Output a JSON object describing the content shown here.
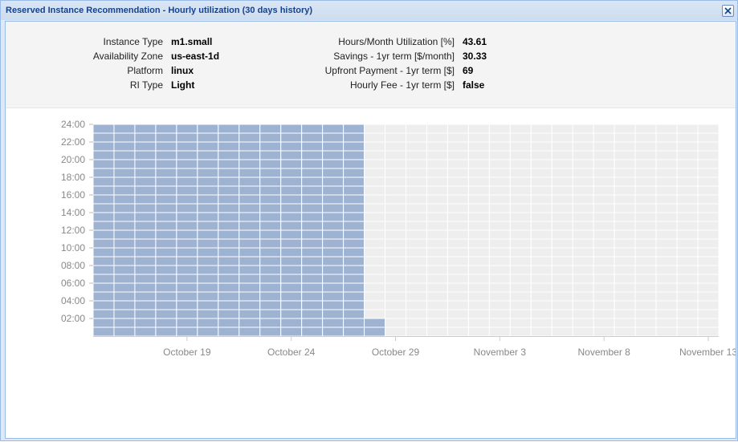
{
  "window": {
    "title": "Reserved Instance Recommendation - Hourly utilization (30 days history)"
  },
  "info": {
    "left": [
      {
        "label": "Instance Type",
        "value": "m1.small"
      },
      {
        "label": "Availability Zone",
        "value": "us-east-1d"
      },
      {
        "label": "Platform",
        "value": "linux"
      },
      {
        "label": "RI Type",
        "value": "Light"
      }
    ],
    "right": [
      {
        "label": "Hours/Month Utilization [%]",
        "value": "43.61"
      },
      {
        "label": "Savings - 1yr term [$/month]",
        "value": "30.33"
      },
      {
        "label": "Upfront Payment - 1yr term [$]",
        "value": "69"
      },
      {
        "label": "Hourly Fee - 1yr term [$]",
        "value": "false"
      }
    ]
  },
  "chart_data": {
    "type": "heatmap",
    "y_ticks": [
      "24:00",
      "22:00",
      "20:00",
      "18:00",
      "16:00",
      "14:00",
      "12:00",
      "10:00",
      "08:00",
      "06:00",
      "04:00",
      "02:00"
    ],
    "x_ticks": [
      {
        "label": "October 19",
        "day": 4.5
      },
      {
        "label": "October 24",
        "day": 9.5
      },
      {
        "label": "October 29",
        "day": 14.5
      },
      {
        "label": "November 3",
        "day": 19.5
      },
      {
        "label": "November 8",
        "day": 24.5
      },
      {
        "label": "November 13",
        "day": 29.5
      }
    ],
    "days": 30,
    "hours_range": [
      0,
      24
    ],
    "series": [
      {
        "day": 1,
        "hours": 24
      },
      {
        "day": 2,
        "hours": 24
      },
      {
        "day": 3,
        "hours": 24
      },
      {
        "day": 4,
        "hours": 24
      },
      {
        "day": 5,
        "hours": 24
      },
      {
        "day": 6,
        "hours": 24
      },
      {
        "day": 7,
        "hours": 24
      },
      {
        "day": 8,
        "hours": 24
      },
      {
        "day": 9,
        "hours": 24
      },
      {
        "day": 10,
        "hours": 24
      },
      {
        "day": 11,
        "hours": 24
      },
      {
        "day": 12,
        "hours": 24
      },
      {
        "day": 13,
        "hours": 24
      },
      {
        "day": 14,
        "hours": 2
      },
      {
        "day": 15,
        "hours": 0
      },
      {
        "day": 16,
        "hours": 0
      },
      {
        "day": 17,
        "hours": 0
      },
      {
        "day": 18,
        "hours": 0
      },
      {
        "day": 19,
        "hours": 0
      },
      {
        "day": 20,
        "hours": 0
      },
      {
        "day": 21,
        "hours": 0
      },
      {
        "day": 22,
        "hours": 0
      },
      {
        "day": 23,
        "hours": 0
      },
      {
        "day": 24,
        "hours": 0
      },
      {
        "day": 25,
        "hours": 0
      },
      {
        "day": 26,
        "hours": 0
      },
      {
        "day": 27,
        "hours": 0
      },
      {
        "day": 28,
        "hours": 0
      },
      {
        "day": 29,
        "hours": 0
      },
      {
        "day": 30,
        "hours": 0
      }
    ],
    "colors": {
      "used": "#9eb2d1",
      "empty": "#eeeeee",
      "grid": "#ffffff",
      "tick": "#888888"
    }
  }
}
